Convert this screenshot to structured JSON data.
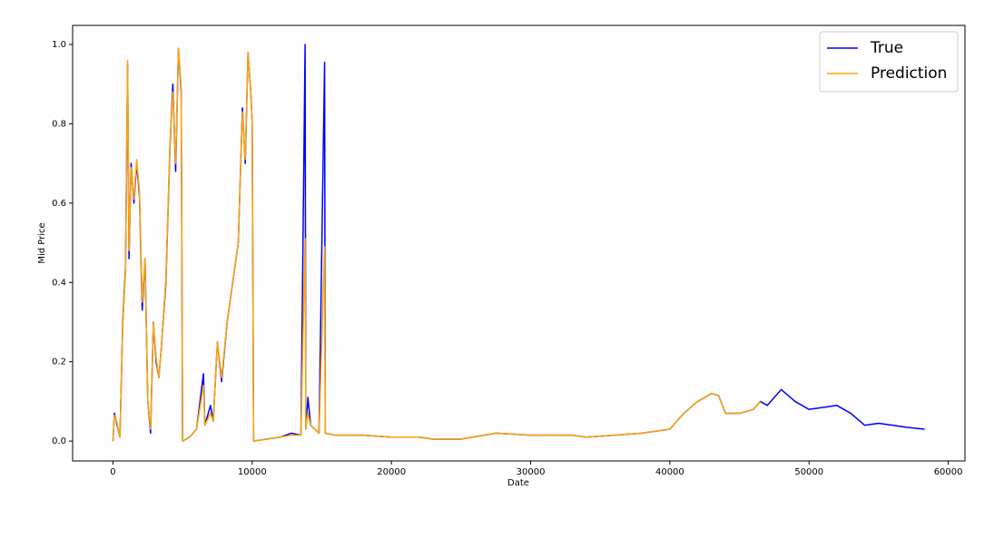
{
  "chart_data": {
    "type": "line",
    "xlabel": "Date",
    "ylabel": "Mid Price",
    "x": [
      0,
      100,
      300,
      500,
      700,
      900,
      1050,
      1150,
      1300,
      1500,
      1700,
      1900,
      2100,
      2300,
      2500,
      2700,
      2900,
      3100,
      3300,
      3500,
      3800,
      4100,
      4300,
      4500,
      4700,
      4900,
      5000,
      5500,
      6000,
      6500,
      6600,
      7000,
      7200,
      7500,
      7800,
      8200,
      8600,
      9000,
      9300,
      9500,
      9700,
      9900,
      10000,
      10100,
      11000,
      12000,
      12800,
      13500,
      13800,
      13850,
      14000,
      14200,
      14800,
      15200,
      15250,
      16000,
      18000,
      20000,
      22000,
      23000,
      25000,
      27500,
      30000,
      33000,
      34000,
      36000,
      38000,
      40000,
      41000,
      42000,
      43000,
      43500,
      44000,
      45000,
      46000,
      46500,
      47000,
      48000,
      49000,
      50000,
      51000,
      52000,
      53000,
      54000,
      55000,
      56000,
      57000,
      58300
    ],
    "series": [
      {
        "name": "True",
        "color": "#0000ff",
        "values": [
          0.0,
          0.07,
          0.04,
          0.01,
          0.3,
          0.44,
          0.95,
          0.46,
          0.7,
          0.6,
          0.7,
          0.62,
          0.33,
          0.46,
          0.1,
          0.02,
          0.3,
          0.2,
          0.16,
          0.25,
          0.4,
          0.75,
          0.9,
          0.68,
          0.99,
          0.88,
          0.0,
          0.01,
          0.03,
          0.17,
          0.04,
          0.09,
          0.05,
          0.25,
          0.15,
          0.3,
          0.4,
          0.5,
          0.84,
          0.7,
          0.98,
          0.88,
          0.8,
          0.0,
          0.005,
          0.01,
          0.02,
          0.015,
          1.0,
          0.03,
          0.11,
          0.04,
          0.02,
          0.955,
          0.02,
          0.015,
          0.015,
          0.01,
          0.01,
          0.005,
          0.005,
          0.02,
          0.015,
          0.015,
          0.01,
          0.015,
          0.02,
          0.03,
          0.07,
          0.1,
          0.12,
          0.115,
          0.07,
          0.07,
          0.08,
          0.1,
          0.09,
          0.13,
          0.1,
          0.08,
          0.085,
          0.09,
          0.07,
          0.04,
          0.045,
          0.04,
          0.035,
          0.03
        ]
      },
      {
        "name": "Prediction",
        "color": "#ffa500",
        "values": [
          0.0,
          0.065,
          0.045,
          0.01,
          0.29,
          0.43,
          0.96,
          0.48,
          0.69,
          0.61,
          0.71,
          0.63,
          0.35,
          0.46,
          0.1,
          0.03,
          0.3,
          0.21,
          0.16,
          0.25,
          0.41,
          0.76,
          0.88,
          0.7,
          0.99,
          0.89,
          0.0,
          0.01,
          0.03,
          0.14,
          0.04,
          0.07,
          0.05,
          0.25,
          0.16,
          0.3,
          0.4,
          0.5,
          0.83,
          0.71,
          0.98,
          0.88,
          0.8,
          0.0,
          0.005,
          0.01,
          0.015,
          0.015,
          0.51,
          0.03,
          0.07,
          0.04,
          0.02,
          0.49,
          0.02,
          0.015,
          0.015,
          0.01,
          0.01,
          0.005,
          0.005,
          0.02,
          0.015,
          0.015,
          0.01,
          0.015,
          0.02,
          0.03,
          0.07,
          0.1,
          0.12,
          0.115,
          0.07,
          0.07,
          0.08,
          0.1,
          null,
          null,
          null,
          null,
          null,
          null,
          null,
          null,
          null,
          null,
          null,
          null
        ]
      }
    ],
    "xlim": [
      -2900,
      61200
    ],
    "ylim": [
      -0.05,
      1.048
    ],
    "xticks": [
      0,
      10000,
      20000,
      30000,
      40000,
      50000,
      60000
    ],
    "yticks": [
      {
        "value": 0,
        "label": "0.0"
      },
      {
        "value": 0.2,
        "label": "0.2"
      },
      {
        "value": 0.4,
        "label": "0.4"
      },
      {
        "value": 0.6,
        "label": "0.6"
      },
      {
        "value": 0.8,
        "label": "0.8"
      },
      {
        "value": 1,
        "label": "1.0"
      }
    ],
    "legend": "upper right"
  }
}
